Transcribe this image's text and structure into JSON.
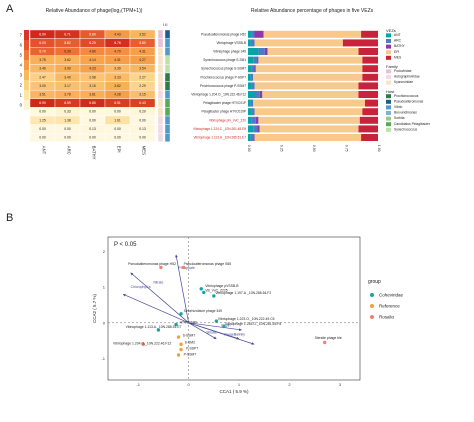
{
  "panel_a_label": "A",
  "panel_b_label": "B",
  "heatmap": {
    "title": "Relative Abundance of phage(log₂(TPM+1))",
    "columns": [
      "ANT",
      "ARC",
      "BATHY",
      "EPI",
      "MES"
    ],
    "scale_ticks": [
      "7",
      "6",
      "5",
      "4",
      "3",
      "2",
      "1",
      "0"
    ],
    "scale_colors": [
      "#d9342a",
      "#e7542d",
      "#f07a35",
      "#f59b46",
      "#f8b85e",
      "#fbd27e",
      "#fde6a6",
      "#fff4d2"
    ],
    "rows": [
      [
        "6.90",
        "6.71",
        "5.89",
        "4.43",
        "3.52"
      ],
      [
        "6.03",
        "5.82",
        "6.20",
        "6.76",
        "5.80"
      ],
      [
        "5.70",
        "5.39",
        "4.80",
        "4.70",
        "4.31"
      ],
      [
        "3.78",
        "3.62",
        "4.14",
        "4.31",
        "4.27"
      ],
      [
        "3.46",
        "3.90",
        "4.23",
        "3.39",
        "3.54"
      ],
      [
        "2.47",
        "3.40",
        "2.98",
        "3.33",
        "2.27"
      ],
      [
        "3.00",
        "3.17",
        "3.15",
        "3.82",
        "2.29"
      ],
      [
        "3.51",
        "3.78",
        "3.81",
        "4.28",
        "3.15"
      ],
      [
        "6.90",
        "6.59",
        "6.85",
        "6.51",
        "6.43"
      ],
      [
        "0.00",
        "0.33",
        "0.00",
        "0.00",
        "0.20"
      ],
      [
        "1.25",
        "1.38",
        "0.00",
        "1.61",
        "0.00"
      ],
      [
        "0.00",
        "0.00",
        "0.13",
        "0.00",
        "0.13"
      ],
      [
        "0.00",
        "0.00",
        "0.00",
        "0.00",
        "0.00"
      ]
    ]
  },
  "bars": {
    "title": "Relative Abundance percentage of phages in five VEZs",
    "rows": [
      {
        "label": "Pseudoalteromonas phage H52",
        "red": false
      },
      {
        "label": "Vibriophage VSSB-B",
        "red": false
      },
      {
        "label": "Vibriophage phage 349",
        "red": false
      },
      {
        "label": "Synechococcus phage S-SM1",
        "red": false
      },
      {
        "label": "Synechococcus phage S-SSM7",
        "red": false
      },
      {
        "label": "Prochlorococcus phage P-SSP7",
        "red": false
      },
      {
        "label": "Prochlorococcus phage P-SSM7",
        "red": false
      },
      {
        "label": "Vibriophage 1.204.O._10N.222.46.F12",
        "red": false
      },
      {
        "label": "Pelagibacter phage HTVC01P",
        "red": false
      },
      {
        "label": "Pelagibacter phage HTVC019P",
        "red": false
      },
      {
        "label": "Vibriophage phi_VvC_Z20",
        "red": true
      },
      {
        "label": "Vibriophage 1.224.C._10N.261.48.E8",
        "red": true
      },
      {
        "label": "Vibriophage 1.113.A._10N.286.51.E7",
        "red": true
      }
    ],
    "x_ticks": [
      "0.00",
      "0.25",
      "0.50",
      "0.75",
      "1.00"
    ],
    "vez_legend_title": "VEZs",
    "vez_legend": [
      {
        "name": "ANT",
        "color": "#00a6a6"
      },
      {
        "name": "ARC",
        "color": "#4a7cc7"
      },
      {
        "name": "BATHY",
        "color": "#8e3aa6"
      },
      {
        "name": "EPI",
        "color": "#f7c98c"
      },
      {
        "name": "MES",
        "color": "#c8233a"
      }
    ],
    "family_legend_title": "Family",
    "family_legend": [
      {
        "name": "Podoviridae",
        "color": "#e8c0d8"
      },
      {
        "name": "Autographiviridae",
        "color": "#f3d9e3"
      },
      {
        "name": "Kyanoviridae",
        "color": "#f6e3c8"
      }
    ],
    "host_legend_title": "Host",
    "host_legend": [
      {
        "name": "Prochlorococcus",
        "color": "#2f7a4a"
      },
      {
        "name": "Pseudoalteromonas",
        "color": "#1f5e8a"
      },
      {
        "name": "Vibrio",
        "color": "#4e9ac8"
      },
      {
        "name": "Brevundimonas",
        "color": "#7fb0d8"
      },
      {
        "name": "Sorbita",
        "color": "#9cc98b"
      },
      {
        "name": "Candidatus Pelagibacter",
        "color": "#5aa95a"
      },
      {
        "name": "Synechococcus",
        "color": "#bfe0a8"
      }
    ]
  },
  "cca": {
    "p_text": "P < 0.05",
    "xlabel": "CCA1 ( 5.9 %)",
    "ylabel": "CCA2 ( 5.7 %)",
    "x_ticks": [
      "-1",
      "0",
      "1",
      "2",
      "3"
    ],
    "y_ticks": [
      "2",
      "1",
      "0",
      "-1"
    ],
    "legend_title": "group",
    "legend": [
      {
        "name": "Coheviridae",
        "color": "#1aa3a3"
      },
      {
        "name": "Reference",
        "color": "#f0a03c"
      },
      {
        "name": "Rosalio",
        "color": "#f08070"
      }
    ],
    "points": [
      {
        "label": "Pseudoalteromonas phage H52",
        "color": "#f08070"
      },
      {
        "label": "Pseudoalteromonas phage S65",
        "color": "#f08070"
      },
      {
        "label": "Vibriophage pVSSB-B",
        "color": "#1aa3a3"
      },
      {
        "label": "VB_VvC_Z225",
        "color": "#1aa3a3"
      },
      {
        "label": "Vibriophage 1.197.A._10N.286.54.F2",
        "color": "#1aa3a3"
      },
      {
        "label": "Sinorhizobium phage 349",
        "color": "#1aa3a3"
      },
      {
        "label": "Vibriophage 1.223.O._10N.222.49.C5",
        "color": "#1aa3a3"
      },
      {
        "label": "Vibriophage 1.245.O._10N.261.55.F8",
        "color": "#1aa3a3"
      },
      {
        "label": "HTVC019P",
        "color": "#1aa3a3"
      },
      {
        "label": "Vibriophage 1.113.A._10N.286.51.E7",
        "color": "#1aa3a3"
      },
      {
        "label": "S-SSM7",
        "color": "#f0a03c"
      },
      {
        "label": "S-SM2",
        "color": "#f0a03c"
      },
      {
        "label": "P-SSP7",
        "color": "#f0a03c"
      },
      {
        "label": "P-SSM7",
        "color": "#f0a03c"
      },
      {
        "label": "Vibriophage 1.204.O._10N.222.46.F12",
        "color": "#f08070"
      },
      {
        "label": "Siersite phage ble",
        "color": "#f08070"
      }
    ],
    "arrows": [
      {
        "label": "Chlorophyll a"
      },
      {
        "label": "Nitrate"
      },
      {
        "label": "Salinity"
      },
      {
        "label": "Oxygen"
      },
      {
        "label": "Depth"
      },
      {
        "label": "Silicate"
      },
      {
        "label": "Phosphate"
      }
    ]
  }
}
